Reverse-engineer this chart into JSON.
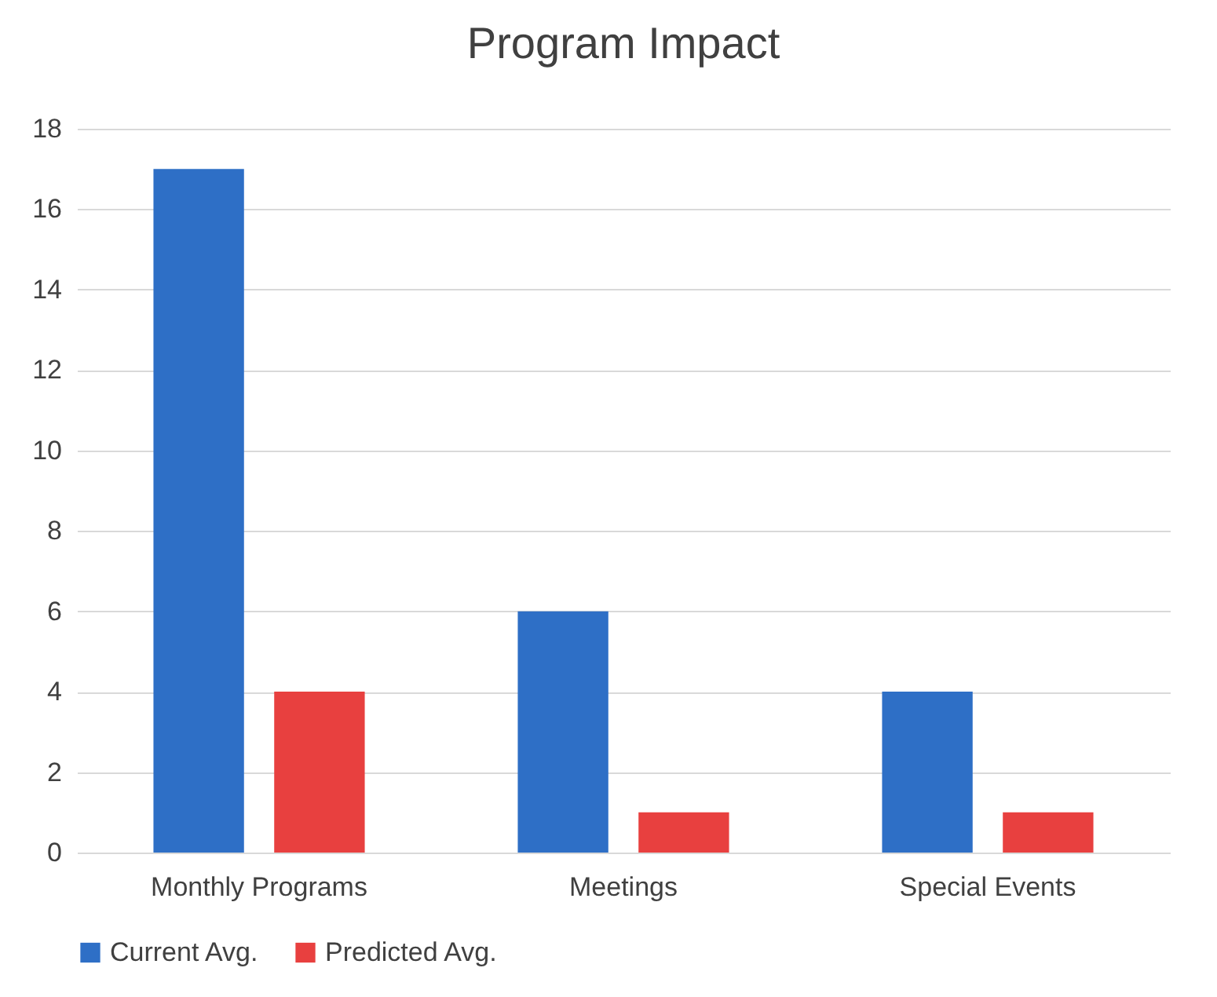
{
  "chart_data": {
    "type": "bar",
    "title": "Program Impact",
    "categories": [
      "Monthly Programs",
      "Meetings",
      "Special Events"
    ],
    "series": [
      {
        "name": "Current Avg.",
        "color": "#2e6fc6",
        "values": [
          17,
          6,
          4
        ]
      },
      {
        "name": "Predicted Avg.",
        "color": "#e8403f",
        "values": [
          4,
          1,
          1
        ]
      }
    ],
    "ylim": [
      0,
      18
    ],
    "yticks": [
      0,
      2,
      4,
      6,
      8,
      10,
      12,
      14,
      16,
      18
    ],
    "grid": "y",
    "legend": "bottom"
  }
}
